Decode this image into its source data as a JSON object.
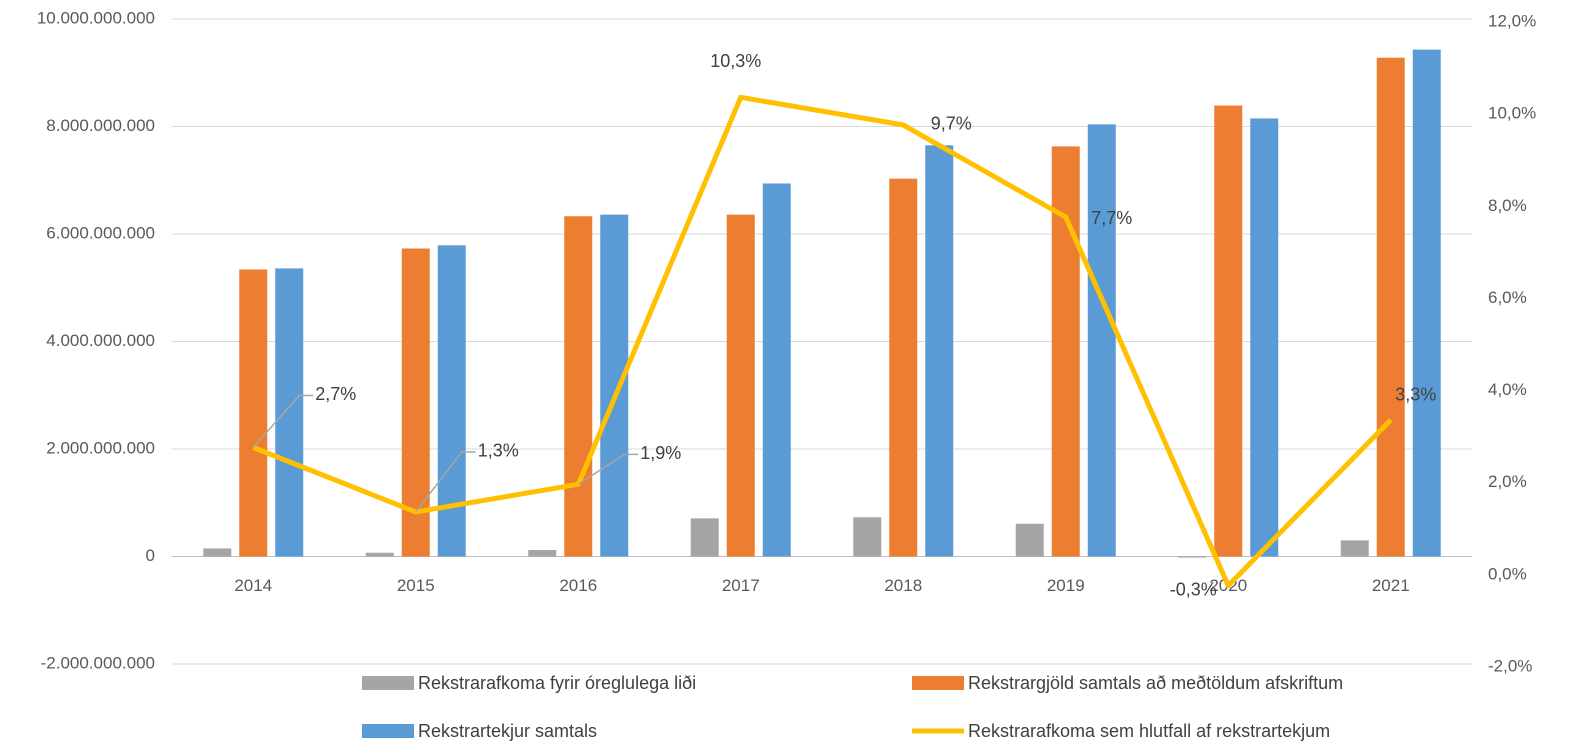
{
  "chart_data": {
    "type": "bar",
    "categories": [
      "2014",
      "2015",
      "2016",
      "2017",
      "2018",
      "2019",
      "2020",
      "2021"
    ],
    "series": [
      {
        "name": "Rekstrarafkoma fyrir óreglulega liði",
        "color": "#a5a5a5",
        "type": "bar",
        "values": [
          150000000,
          70000000,
          120000000,
          710000000,
          730000000,
          610000000,
          -20000000,
          300000000
        ]
      },
      {
        "name": "Rekstrargjöld samtals að meðtöldum afskriftum",
        "color": "#ed7d31",
        "type": "bar",
        "values": [
          5340000000,
          5730000000,
          6330000000,
          6360000000,
          7030000000,
          7630000000,
          8390000000,
          9280000000
        ]
      },
      {
        "name": "Rekstrartekjur samtals",
        "color": "#5b9bd5",
        "type": "bar",
        "values": [
          5360000000,
          5790000000,
          6360000000,
          6940000000,
          7650000000,
          8040000000,
          8150000000,
          9430000000
        ]
      },
      {
        "name": "Rekstrarafkoma sem hlutfall af rekstrartekjum",
        "color": "#ffc000",
        "type": "line",
        "axis": "y2",
        "values": [
          2.7,
          1.3,
          1.9,
          10.3,
          9.7,
          7.7,
          -0.3,
          3.3
        ],
        "value_labels": [
          "2,7%",
          "1,3%",
          "1,9%",
          "10,3%",
          "9,7%",
          "7,7%",
          "-0,3%",
          "3,3%"
        ]
      }
    ],
    "ylim": [
      -2000000000,
      10000000000
    ],
    "yticks": [
      {
        "value": -2000000000,
        "label": "-2.000.000.000"
      },
      0,
      {
        "value": 2000000000,
        "label": "2.000.000.000"
      },
      {
        "value": 4000000000,
        "label": "4.000.000.000"
      },
      {
        "value": 6000000000,
        "label": "6.000.000.000"
      },
      {
        "value": 8000000000,
        "label": "8.000.000.000"
      },
      {
        "value": 10000000000,
        "label": "10.000.000.000"
      }
    ],
    "y2lim": [
      -2,
      12
    ],
    "y2ticks": [
      {
        "value": -2,
        "label": "-2,0%"
      },
      {
        "value": 0,
        "label": "0,0%"
      },
      {
        "value": 2,
        "label": "2,0%"
      },
      {
        "value": 4,
        "label": "4,0%"
      },
      {
        "value": 6,
        "label": "6,0%"
      },
      {
        "value": 8,
        "label": "8,0%"
      },
      {
        "value": 10,
        "label": "10,0%"
      },
      {
        "value": 12,
        "label": "12,0%"
      }
    ],
    "grid": true,
    "legend": "bottom"
  }
}
